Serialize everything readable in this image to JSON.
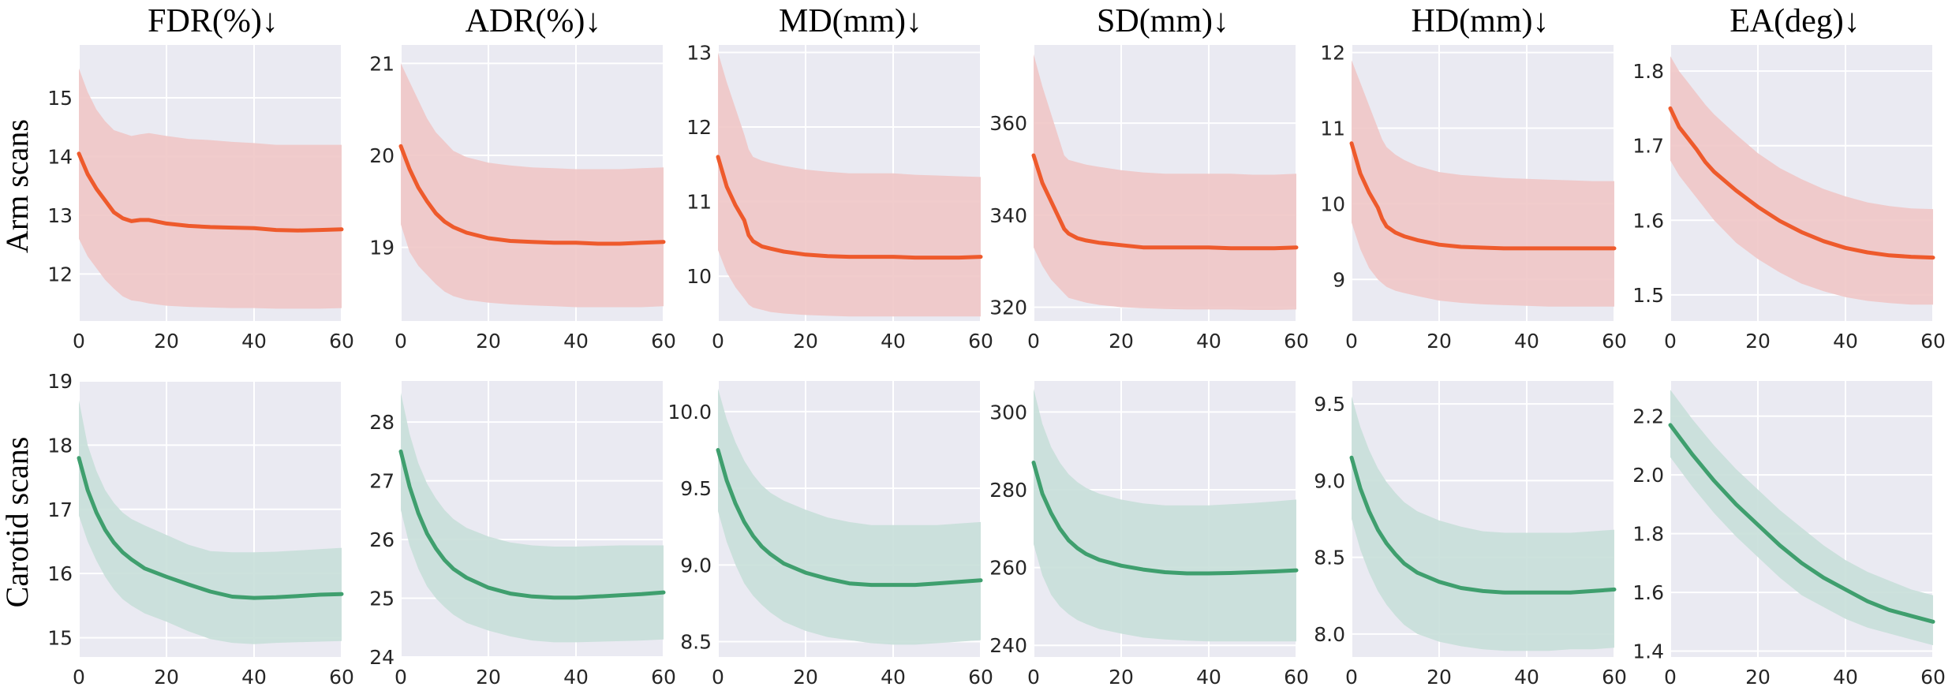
{
  "figure": {
    "column_titles": [
      "FDR(%)↓",
      "ADR(%)↓",
      "MD(mm)↓",
      "SD(mm)↓",
      "HD(mm)↓",
      "EA(deg)↓"
    ],
    "row_labels": [
      "Arm scans",
      "Carotid scans"
    ],
    "colors": {
      "plot_background": "#eaeaf2",
      "grid": "#ffffff",
      "arm_line": "#ee5a2c",
      "arm_band": "#f0c7c6",
      "carotid_line": "#3f9f6e",
      "carotid_band": "#c8dfd9"
    }
  },
  "chart_data": [
    {
      "type": "line",
      "row": "Arm scans",
      "column": "FDR(%)↓",
      "xlim": [
        0,
        60
      ],
      "ylim": [
        11.2,
        15.9
      ],
      "xticks": [
        0,
        20,
        40,
        60
      ],
      "yticks": [
        12,
        13,
        14,
        15
      ],
      "grid": true,
      "x": [
        0,
        2,
        4,
        6,
        8,
        10,
        12,
        14,
        16,
        20,
        25,
        30,
        35,
        40,
        45,
        50,
        55,
        60
      ],
      "mean": [
        14.05,
        13.7,
        13.45,
        13.25,
        13.05,
        12.95,
        12.9,
        12.92,
        12.92,
        12.86,
        12.82,
        12.8,
        12.79,
        12.78,
        12.75,
        12.74,
        12.75,
        12.76
      ],
      "upper": [
        15.5,
        15.1,
        14.8,
        14.6,
        14.45,
        14.4,
        14.35,
        14.38,
        14.4,
        14.35,
        14.3,
        14.28,
        14.25,
        14.23,
        14.2,
        14.2,
        14.2,
        14.2
      ],
      "lower": [
        12.6,
        12.3,
        12.1,
        11.9,
        11.75,
        11.62,
        11.55,
        11.53,
        11.5,
        11.46,
        11.44,
        11.43,
        11.42,
        11.42,
        11.41,
        11.41,
        11.41,
        11.42
      ]
    },
    {
      "type": "line",
      "row": "Arm scans",
      "column": "ADR(%)↓",
      "xlim": [
        0,
        60
      ],
      "ylim": [
        18.2,
        21.2
      ],
      "xticks": [
        0,
        20,
        40,
        60
      ],
      "yticks": [
        19,
        20,
        21
      ],
      "grid": true,
      "x": [
        0,
        2,
        4,
        6,
        8,
        10,
        12,
        15,
        20,
        25,
        30,
        35,
        40,
        45,
        50,
        55,
        60
      ],
      "mean": [
        20.1,
        19.85,
        19.65,
        19.5,
        19.37,
        19.28,
        19.22,
        19.16,
        19.1,
        19.07,
        19.06,
        19.05,
        19.05,
        19.04,
        19.04,
        19.05,
        19.06
      ],
      "upper": [
        21.0,
        20.8,
        20.6,
        20.4,
        20.25,
        20.15,
        20.05,
        19.98,
        19.92,
        19.89,
        19.87,
        19.86,
        19.85,
        19.85,
        19.85,
        19.86,
        19.87
      ],
      "lower": [
        19.25,
        18.95,
        18.8,
        18.7,
        18.6,
        18.52,
        18.47,
        18.43,
        18.4,
        18.38,
        18.37,
        18.36,
        18.35,
        18.35,
        18.35,
        18.35,
        18.36
      ]
    },
    {
      "type": "line",
      "row": "Arm scans",
      "column": "MD(mm)↓",
      "xlim": [
        0,
        60
      ],
      "ylim": [
        9.4,
        13.1
      ],
      "xticks": [
        0,
        20,
        40,
        60
      ],
      "yticks": [
        10,
        11,
        12,
        13
      ],
      "grid": true,
      "x": [
        0,
        2,
        4,
        6,
        7,
        8,
        10,
        12,
        15,
        20,
        25,
        30,
        35,
        40,
        45,
        50,
        55,
        60
      ],
      "mean": [
        11.6,
        11.2,
        10.95,
        10.75,
        10.55,
        10.47,
        10.4,
        10.37,
        10.33,
        10.29,
        10.27,
        10.26,
        10.26,
        10.26,
        10.25,
        10.25,
        10.25,
        10.26
      ],
      "upper": [
        13.0,
        12.6,
        12.25,
        11.9,
        11.7,
        11.6,
        11.55,
        11.52,
        11.48,
        11.43,
        11.4,
        11.38,
        11.38,
        11.38,
        11.36,
        11.35,
        11.34,
        11.33
      ],
      "lower": [
        10.35,
        10.05,
        9.85,
        9.7,
        9.62,
        9.58,
        9.55,
        9.52,
        9.5,
        9.48,
        9.47,
        9.46,
        9.46,
        9.46,
        9.46,
        9.46,
        9.46,
        9.46
      ]
    },
    {
      "type": "line",
      "row": "Arm scans",
      "column": "SD(mm)↓",
      "xlim": [
        0,
        60
      ],
      "ylim": [
        317,
        377
      ],
      "xticks": [
        0,
        20,
        40,
        60
      ],
      "yticks": [
        320,
        340,
        360
      ],
      "grid": true,
      "x": [
        0,
        2,
        4,
        6,
        7,
        8,
        10,
        12,
        15,
        20,
        25,
        30,
        35,
        40,
        45,
        50,
        55,
        60
      ],
      "mean": [
        353,
        347,
        343,
        339,
        337,
        336,
        335,
        334.5,
        334,
        333.5,
        333,
        333,
        333,
        333,
        332.8,
        332.8,
        332.8,
        333
      ],
      "upper": [
        375,
        368,
        362,
        356,
        353,
        352,
        351.5,
        351,
        350.5,
        349.8,
        349.3,
        349,
        349,
        349,
        349,
        348.8,
        348.8,
        349
      ],
      "lower": [
        333,
        329,
        326,
        324,
        323,
        322,
        321.5,
        321,
        320.5,
        320,
        319.8,
        319.6,
        319.5,
        319.5,
        319.5,
        319.4,
        319.4,
        319.5
      ]
    },
    {
      "type": "line",
      "row": "Arm scans",
      "column": "HD(mm)↓",
      "xlim": [
        0,
        60
      ],
      "ylim": [
        8.45,
        12.1
      ],
      "xticks": [
        0,
        20,
        40,
        60
      ],
      "yticks": [
        9,
        10,
        11,
        12
      ],
      "grid": true,
      "x": [
        0,
        2,
        4,
        6,
        7,
        8,
        10,
        12,
        15,
        20,
        25,
        30,
        35,
        40,
        45,
        50,
        55,
        60
      ],
      "mean": [
        10.8,
        10.4,
        10.15,
        9.95,
        9.8,
        9.7,
        9.62,
        9.57,
        9.52,
        9.46,
        9.43,
        9.42,
        9.41,
        9.41,
        9.41,
        9.41,
        9.41,
        9.41
      ],
      "upper": [
        11.9,
        11.6,
        11.3,
        11.0,
        10.85,
        10.75,
        10.65,
        10.58,
        10.5,
        10.42,
        10.38,
        10.36,
        10.34,
        10.33,
        10.32,
        10.31,
        10.3,
        10.3
      ],
      "lower": [
        9.75,
        9.4,
        9.15,
        9.0,
        8.95,
        8.9,
        8.85,
        8.82,
        8.78,
        8.72,
        8.69,
        8.67,
        8.66,
        8.65,
        8.64,
        8.64,
        8.64,
        8.64
      ]
    },
    {
      "type": "line",
      "row": "Arm scans",
      "column": "EA(deg)↓",
      "xlim": [
        0,
        60
      ],
      "ylim": [
        1.465,
        1.835
      ],
      "xticks": [
        0,
        20,
        40,
        60
      ],
      "yticks": [
        1.5,
        1.6,
        1.7,
        1.8
      ],
      "grid": true,
      "x": [
        0,
        2,
        4,
        6,
        8,
        10,
        15,
        20,
        25,
        30,
        35,
        40,
        45,
        50,
        55,
        60
      ],
      "mean": [
        1.75,
        1.725,
        1.71,
        1.695,
        1.678,
        1.665,
        1.64,
        1.618,
        1.599,
        1.584,
        1.572,
        1.563,
        1.557,
        1.553,
        1.551,
        1.55
      ],
      "upper": [
        1.82,
        1.8,
        1.785,
        1.77,
        1.755,
        1.742,
        1.715,
        1.69,
        1.67,
        1.655,
        1.642,
        1.632,
        1.624,
        1.619,
        1.616,
        1.615
      ],
      "lower": [
        1.68,
        1.66,
        1.645,
        1.63,
        1.615,
        1.6,
        1.57,
        1.548,
        1.53,
        1.515,
        1.505,
        1.497,
        1.492,
        1.489,
        1.487,
        1.487
      ]
    },
    {
      "type": "line",
      "row": "Carotid scans",
      "column": "FDR(%)↓",
      "xlim": [
        0,
        60
      ],
      "ylim": [
        14.7,
        19.0
      ],
      "xticks": [
        0,
        20,
        40,
        60
      ],
      "yticks": [
        15,
        16,
        17,
        18,
        19
      ],
      "grid": true,
      "x": [
        0,
        2,
        4,
        6,
        8,
        10,
        12,
        15,
        20,
        25,
        30,
        35,
        40,
        45,
        50,
        55,
        60
      ],
      "mean": [
        17.8,
        17.3,
        16.95,
        16.68,
        16.48,
        16.33,
        16.22,
        16.08,
        15.95,
        15.83,
        15.72,
        15.64,
        15.62,
        15.63,
        15.65,
        15.67,
        15.68
      ],
      "upper": [
        18.7,
        18.0,
        17.6,
        17.3,
        17.1,
        16.95,
        16.85,
        16.75,
        16.6,
        16.45,
        16.35,
        16.33,
        16.33,
        16.34,
        16.36,
        16.38,
        16.4
      ],
      "lower": [
        16.9,
        16.5,
        16.2,
        15.95,
        15.75,
        15.6,
        15.5,
        15.38,
        15.25,
        15.1,
        14.98,
        14.92,
        14.9,
        14.92,
        14.93,
        14.94,
        14.95
      ]
    },
    {
      "type": "line",
      "row": "Carotid scans",
      "column": "ADR(%)↓",
      "xlim": [
        0,
        60
      ],
      "ylim": [
        24.0,
        28.7
      ],
      "xticks": [
        0,
        20,
        40,
        60
      ],
      "yticks": [
        24,
        25,
        26,
        27,
        28
      ],
      "grid": true,
      "x": [
        0,
        2,
        4,
        6,
        8,
        10,
        12,
        15,
        20,
        25,
        30,
        35,
        40,
        45,
        50,
        55,
        60
      ],
      "mean": [
        27.5,
        26.9,
        26.45,
        26.1,
        25.85,
        25.65,
        25.5,
        25.35,
        25.18,
        25.08,
        25.03,
        25.01,
        25.01,
        25.03,
        25.05,
        25.07,
        25.1
      ],
      "upper": [
        28.5,
        27.8,
        27.3,
        26.95,
        26.7,
        26.5,
        26.35,
        26.2,
        26.05,
        25.95,
        25.9,
        25.88,
        25.88,
        25.89,
        25.9,
        25.9,
        25.9
      ],
      "lower": [
        26.5,
        25.9,
        25.5,
        25.2,
        25.0,
        24.85,
        24.72,
        24.58,
        24.45,
        24.35,
        24.28,
        24.25,
        24.25,
        24.26,
        24.27,
        24.28,
        24.3
      ]
    },
    {
      "type": "line",
      "row": "Carotid scans",
      "column": "MD(mm)↓",
      "xlim": [
        0,
        60
      ],
      "ylim": [
        8.4,
        10.2
      ],
      "xticks": [
        0,
        20,
        40,
        60
      ],
      "yticks": [
        8.5,
        9.0,
        9.5,
        10.0
      ],
      "grid": true,
      "x": [
        0,
        2,
        4,
        6,
        8,
        10,
        12,
        15,
        20,
        25,
        30,
        35,
        40,
        45,
        50,
        55,
        60
      ],
      "mean": [
        9.75,
        9.55,
        9.4,
        9.28,
        9.19,
        9.12,
        9.07,
        9.01,
        8.95,
        8.91,
        8.88,
        8.87,
        8.87,
        8.87,
        8.88,
        8.89,
        8.9
      ],
      "upper": [
        10.15,
        9.95,
        9.8,
        9.68,
        9.59,
        9.52,
        9.47,
        9.42,
        9.36,
        9.31,
        9.28,
        9.26,
        9.26,
        9.26,
        9.26,
        9.27,
        9.28
      ],
      "lower": [
        9.35,
        9.15,
        9.0,
        8.88,
        8.8,
        8.74,
        8.69,
        8.63,
        8.57,
        8.53,
        8.51,
        8.49,
        8.48,
        8.48,
        8.49,
        8.5,
        8.51
      ]
    },
    {
      "type": "line",
      "row": "Carotid scans",
      "column": "SD(mm)↓",
      "xlim": [
        0,
        60
      ],
      "ylim": [
        237,
        308
      ],
      "xticks": [
        0,
        20,
        40,
        60
      ],
      "yticks": [
        240,
        260,
        280,
        300
      ],
      "grid": true,
      "x": [
        0,
        2,
        4,
        6,
        8,
        10,
        12,
        15,
        20,
        25,
        30,
        35,
        40,
        45,
        50,
        55,
        60
      ],
      "mean": [
        287,
        279,
        274,
        270,
        267,
        265,
        263.5,
        262,
        260.5,
        259.5,
        258.8,
        258.5,
        258.5,
        258.6,
        258.8,
        259,
        259.3
      ],
      "upper": [
        306,
        297,
        291,
        287,
        284,
        282,
        280.5,
        279,
        277.5,
        276.5,
        276,
        276,
        276,
        276.3,
        276.6,
        277,
        277.5
      ],
      "lower": [
        266,
        258,
        253,
        250,
        248,
        246.5,
        245.5,
        244.2,
        243,
        242,
        241.5,
        241.2,
        241,
        241,
        241,
        241,
        241
      ]
    },
    {
      "type": "line",
      "row": "Carotid scans",
      "column": "HD(mm)↓",
      "xlim": [
        0,
        60
      ],
      "ylim": [
        7.85,
        9.65
      ],
      "xticks": [
        0,
        20,
        40,
        60
      ],
      "yticks": [
        8.0,
        8.5,
        9.0,
        9.5
      ],
      "grid": true,
      "x": [
        0,
        2,
        4,
        6,
        8,
        10,
        12,
        15,
        20,
        25,
        30,
        35,
        40,
        45,
        50,
        55,
        60
      ],
      "mean": [
        9.15,
        8.95,
        8.8,
        8.68,
        8.59,
        8.52,
        8.46,
        8.4,
        8.34,
        8.3,
        8.28,
        8.27,
        8.27,
        8.27,
        8.27,
        8.28,
        8.29
      ],
      "upper": [
        9.55,
        9.35,
        9.2,
        9.08,
        8.99,
        8.92,
        8.86,
        8.8,
        8.74,
        8.7,
        8.67,
        8.66,
        8.66,
        8.66,
        8.66,
        8.67,
        8.68
      ],
      "lower": [
        8.75,
        8.55,
        8.4,
        8.28,
        8.19,
        8.12,
        8.06,
        8.0,
        7.95,
        7.92,
        7.9,
        7.89,
        7.89,
        7.89,
        7.9,
        7.9,
        7.91
      ]
    },
    {
      "type": "line",
      "row": "Carotid scans",
      "column": "EA(deg)↓",
      "xlim": [
        0,
        60
      ],
      "ylim": [
        1.38,
        2.32
      ],
      "xticks": [
        0,
        20,
        40,
        60
      ],
      "yticks": [
        1.4,
        1.6,
        1.8,
        2.0,
        2.2
      ],
      "grid": true,
      "x": [
        0,
        5,
        10,
        15,
        20,
        25,
        30,
        35,
        40,
        45,
        50,
        55,
        60
      ],
      "mean": [
        2.17,
        2.07,
        1.98,
        1.9,
        1.83,
        1.76,
        1.7,
        1.65,
        1.61,
        1.57,
        1.54,
        1.52,
        1.5
      ],
      "upper": [
        2.29,
        2.19,
        2.1,
        2.02,
        1.95,
        1.88,
        1.82,
        1.76,
        1.71,
        1.67,
        1.64,
        1.61,
        1.59
      ],
      "lower": [
        2.06,
        1.96,
        1.87,
        1.79,
        1.72,
        1.65,
        1.59,
        1.55,
        1.51,
        1.48,
        1.46,
        1.44,
        1.42
      ]
    }
  ]
}
